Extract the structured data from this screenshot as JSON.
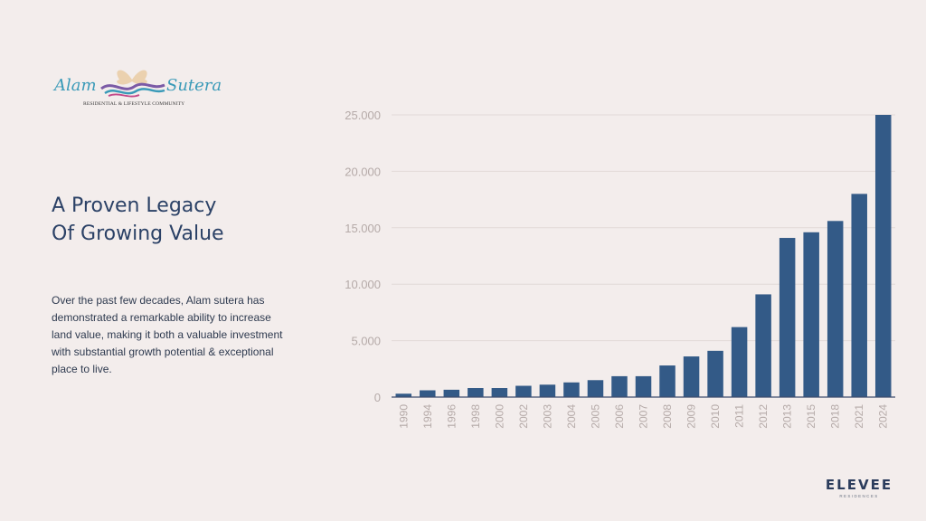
{
  "logo": {
    "word1": "Alam",
    "word2": "Sutera",
    "tagline": "RESIDENTIAL & LIFESTYLE COMMUNITY"
  },
  "heading": {
    "line1": "A Proven Legacy",
    "line2": "Of Growing Value"
  },
  "description": "Over the past few decades, Alam sutera has demonstrated a remarkable ability to increase land value, making it both a valuable investment with substantial growth potential & exceptional place to live.",
  "brand": {
    "name": "ELEVEE",
    "sub": "RESIDENCES"
  },
  "colors": {
    "bar": "#335a87",
    "axis_text": "#b5aaa8",
    "background": "#f3edec",
    "heading": "#2b4166"
  },
  "chart_data": {
    "type": "bar",
    "categories": [
      "1990",
      "1994",
      "1996",
      "1998",
      "2000",
      "2002",
      "2003",
      "2004",
      "2005",
      "2006",
      "2007",
      "2008",
      "2009",
      "2010",
      "2011",
      "2012",
      "2013",
      "2015",
      "2018",
      "2021",
      "2024"
    ],
    "values": [
      300,
      600,
      650,
      800,
      800,
      1000,
      1100,
      1300,
      1500,
      1850,
      1850,
      2800,
      3600,
      4100,
      6200,
      9100,
      14100,
      14600,
      15600,
      18000,
      25000
    ],
    "ylim": [
      0,
      25000
    ],
    "yticks": [
      0,
      5000,
      10000,
      15000,
      20000,
      25000
    ],
    "ytick_labels": [
      "0",
      "5.000",
      "10.000",
      "15.000",
      "20.000",
      "25.000"
    ],
    "grid": true,
    "title": "",
    "xlabel": "",
    "ylabel": ""
  }
}
